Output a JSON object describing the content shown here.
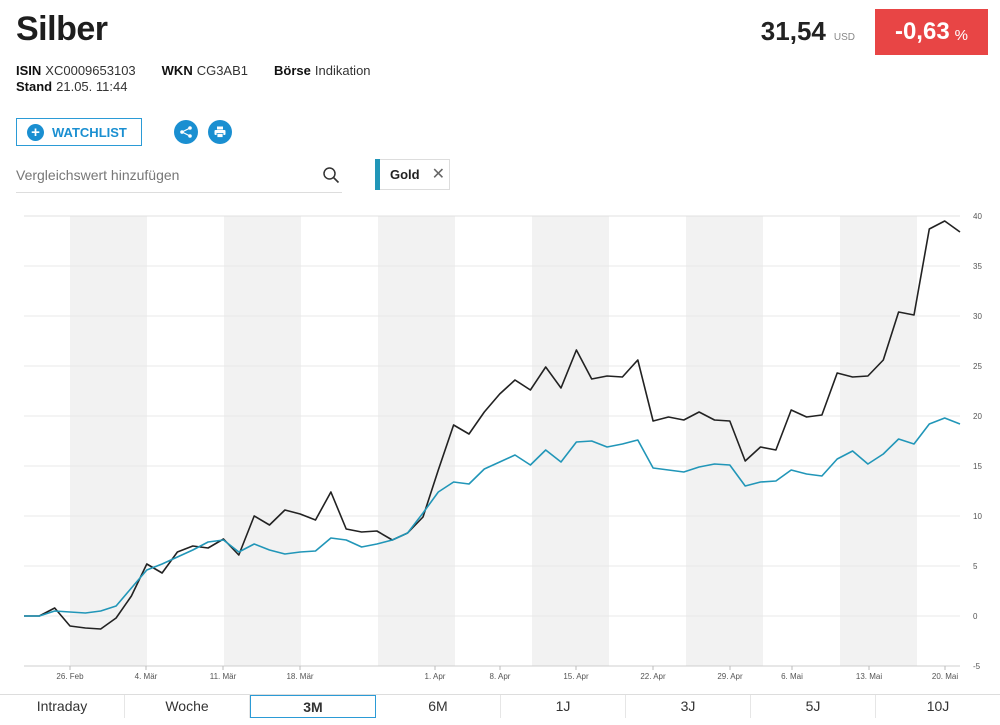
{
  "header": {
    "title": "Silber",
    "isin_label": "ISIN",
    "isin_value": "XC0009653103",
    "wkn_label": "WKN",
    "wkn_value": "CG3AB1",
    "exchange_label": "Börse",
    "exchange_value": "Indikation",
    "stand_label": "Stand",
    "stand_value": "21.05. 11:44"
  },
  "quote": {
    "price": "31,54",
    "currency": "USD",
    "change": "-0,63",
    "change_unit": "%",
    "change_color": "#e84545"
  },
  "actions": {
    "watchlist_label": "WATCHLIST",
    "watchlist_icon": "plus-icon",
    "share_icon": "share-icon",
    "print_icon": "print-icon",
    "accent": "#1a8fd1"
  },
  "compare": {
    "placeholder": "Vergleichswert hinzufügen",
    "search_icon": "search-icon",
    "chip_label": "Gold",
    "chip_color": "#2196b8"
  },
  "chart_data": {
    "type": "line",
    "x_labels": [
      "26. Feb",
      "4. Mär",
      "11. Mär",
      "18. Mär",
      "1. Apr",
      "8. Apr",
      "15. Apr",
      "22. Apr",
      "29. Apr",
      "6. Mai",
      "13. Mai",
      "20. Mai"
    ],
    "y_ticks": [
      -5,
      0,
      5,
      10,
      15,
      20,
      25,
      30,
      35,
      40
    ],
    "ylim": [
      -5,
      40
    ],
    "y_axis_side": "right",
    "grid": true,
    "legend": "none",
    "series": [
      {
        "color": "#222222",
        "values": [
          0,
          0,
          0.8,
          -1,
          -1.2,
          -1.3,
          -0.2,
          2,
          5.2,
          4.3,
          6.4,
          7,
          6.8,
          7.7,
          6.1,
          10,
          9.1,
          10.6,
          10.2,
          9.6,
          12.4,
          8.7,
          8.4,
          8.5,
          7.6,
          8.3,
          9.9,
          14.6,
          19.1,
          18.2,
          20.4,
          22.2,
          23.6,
          22.6,
          24.9,
          22.8,
          26.6,
          23.7,
          24,
          23.9,
          25.6,
          19.5,
          19.9,
          19.6,
          20.4,
          19.6,
          19.5,
          15.5,
          16.9,
          16.6,
          20.6,
          19.9,
          20.1,
          24.3,
          23.9,
          24,
          25.6,
          30.4,
          30.1,
          38.7,
          39.5,
          38.4
        ]
      },
      {
        "color": "#2196b8",
        "values": [
          0,
          0,
          0.5,
          0.4,
          0.3,
          0.5,
          1,
          2.8,
          4.6,
          5.2,
          5.9,
          6.6,
          7.4,
          7.6,
          6.4,
          7.2,
          6.6,
          6.2,
          6.4,
          6.5,
          7.8,
          7.6,
          6.9,
          7.2,
          7.6,
          8.3,
          10.3,
          12.4,
          13.4,
          13.2,
          14.7,
          15.4,
          16.1,
          15.1,
          16.6,
          15.4,
          17.4,
          17.5,
          16.9,
          17.2,
          17.6,
          14.8,
          14.6,
          14.4,
          14.9,
          15.2,
          15.1,
          13,
          13.4,
          13.5,
          14.6,
          14.2,
          14,
          15.7,
          16.5,
          15.2,
          16.2,
          17.7,
          17.2,
          19.2,
          19.8,
          19.2
        ]
      }
    ]
  },
  "tabs": {
    "items": [
      "Intraday",
      "Woche",
      "3M",
      "6M",
      "1J",
      "3J",
      "5J",
      "10J"
    ],
    "active_index": 2
  }
}
